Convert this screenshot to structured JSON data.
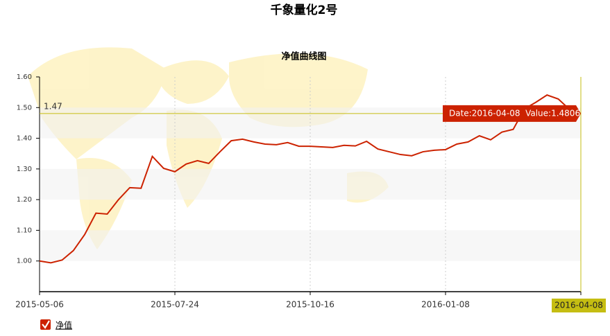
{
  "chart_data": {
    "type": "line",
    "title": "千象量化2号",
    "subtitle": "净值曲线图",
    "categories": [
      "2015-05-06",
      null,
      null,
      null,
      null,
      null,
      null,
      null,
      null,
      null,
      null,
      null,
      "2015-07-24",
      null,
      null,
      null,
      null,
      null,
      null,
      null,
      null,
      null,
      null,
      null,
      "2015-10-16",
      null,
      null,
      null,
      null,
      null,
      null,
      null,
      null,
      null,
      null,
      null,
      "2016-01-08",
      null,
      null,
      null,
      null,
      null,
      null,
      null,
      null,
      null,
      null,
      null,
      "2016-04-08"
    ],
    "series": [
      {
        "name": "净值",
        "color": "#cc2200",
        "values": [
          1.0,
          0.994,
          1.003,
          1.034,
          1.086,
          1.156,
          1.153,
          1.2,
          1.239,
          1.237,
          1.341,
          1.302,
          1.291,
          1.316,
          1.327,
          1.318,
          1.356,
          1.392,
          1.397,
          1.388,
          1.381,
          1.379,
          1.386,
          1.374,
          1.374,
          1.372,
          1.37,
          1.377,
          1.375,
          1.39,
          1.365,
          1.356,
          1.347,
          1.343,
          1.356,
          1.361,
          1.363,
          1.381,
          1.388,
          1.408,
          1.395,
          1.42,
          1.429,
          1.496,
          1.517,
          1.541,
          1.528,
          1.494,
          1.4806
        ]
      }
    ],
    "ylim": [
      0.9,
      1.6
    ],
    "yticks": [
      {
        "value": 1,
        "label": "1.00"
      },
      {
        "value": 1.1,
        "label": "1.10"
      },
      {
        "value": 1.2,
        "label": "1.20"
      },
      {
        "value": 1.3,
        "label": "1.30"
      },
      {
        "value": 1.4,
        "label": "1.40"
      },
      {
        "value": 1.5,
        "label": "1.50"
      },
      {
        "value": 1.6,
        "label": "1.60"
      }
    ],
    "crosshair_label": "1.47",
    "tooltip": "Date:2016-04-08  Value:1.4806"
  }
}
